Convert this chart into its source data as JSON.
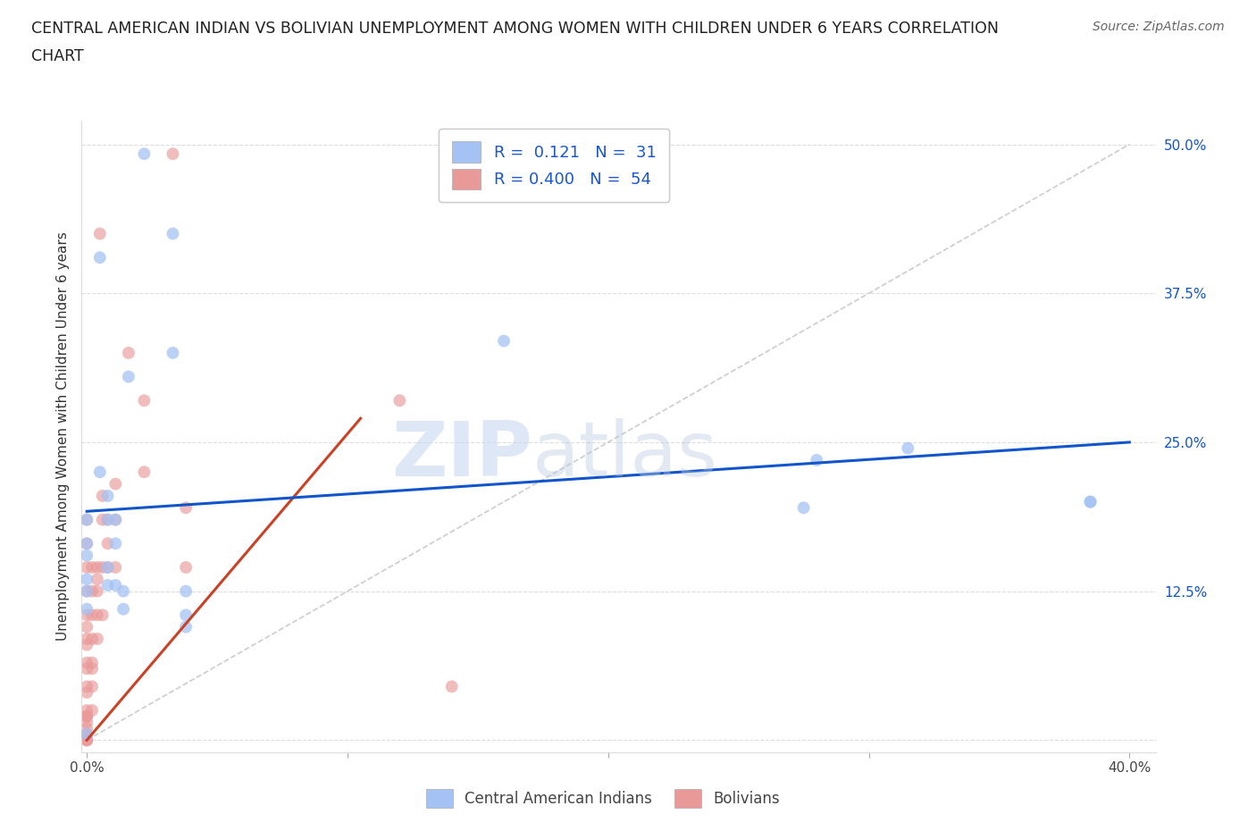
{
  "title_line1": "CENTRAL AMERICAN INDIAN VS BOLIVIAN UNEMPLOYMENT AMONG WOMEN WITH CHILDREN UNDER 6 YEARS CORRELATION",
  "title_line2": "CHART",
  "source": "Source: ZipAtlas.com",
  "ylabel": "Unemployment Among Women with Children Under 6 years",
  "xlim": [
    -0.002,
    0.41
  ],
  "ylim": [
    -0.01,
    0.52
  ],
  "xticks": [
    0.0,
    0.1,
    0.2,
    0.3,
    0.4
  ],
  "xticklabels": [
    "0.0%",
    "",
    "",
    "",
    "40.0%"
  ],
  "yticks": [
    0.0,
    0.125,
    0.25,
    0.375,
    0.5
  ],
  "yticklabels": [
    "",
    "12.5%",
    "25.0%",
    "37.5%",
    "50.0%"
  ],
  "blue_color": "#a4c2f4",
  "pink_color": "#ea9999",
  "blue_line_color": "#1155cc",
  "pink_line_color": "#cc4125",
  "diag_line_color": "#cccccc",
  "legend_R1": " 0.121",
  "legend_N1": "31",
  "legend_R2": "0.400",
  "legend_N2": "54",
  "watermark_zip": "ZIP",
  "watermark_atlas": "atlas",
  "blue_scatter_x": [
    0.022,
    0.033,
    0.005,
    0.033,
    0.016,
    0.005,
    0.008,
    0.008,
    0.011,
    0.011,
    0.008,
    0.008,
    0.011,
    0.014,
    0.014,
    0.038,
    0.038,
    0.038,
    0.16,
    0.28,
    0.275,
    0.315,
    0.385,
    0.385,
    0.0,
    0.0,
    0.0,
    0.0,
    0.0,
    0.0,
    0.0
  ],
  "blue_scatter_y": [
    0.492,
    0.425,
    0.405,
    0.325,
    0.305,
    0.225,
    0.205,
    0.185,
    0.185,
    0.165,
    0.145,
    0.13,
    0.13,
    0.125,
    0.11,
    0.125,
    0.105,
    0.095,
    0.335,
    0.235,
    0.195,
    0.245,
    0.2,
    0.2,
    0.185,
    0.165,
    0.155,
    0.135,
    0.125,
    0.11,
    0.005
  ],
  "pink_scatter_x": [
    0.033,
    0.005,
    0.016,
    0.022,
    0.022,
    0.011,
    0.011,
    0.011,
    0.008,
    0.008,
    0.008,
    0.006,
    0.006,
    0.006,
    0.006,
    0.004,
    0.004,
    0.004,
    0.004,
    0.004,
    0.002,
    0.002,
    0.002,
    0.002,
    0.002,
    0.002,
    0.002,
    0.002,
    0.0,
    0.0,
    0.0,
    0.0,
    0.0,
    0.0,
    0.0,
    0.0,
    0.0,
    0.0,
    0.0,
    0.0,
    0.0,
    0.0,
    0.0,
    0.0,
    0.0,
    0.0,
    0.0,
    0.0,
    0.0,
    0.0,
    0.038,
    0.038,
    0.12,
    0.14
  ],
  "pink_scatter_y": [
    0.492,
    0.425,
    0.325,
    0.285,
    0.225,
    0.215,
    0.185,
    0.145,
    0.185,
    0.165,
    0.145,
    0.205,
    0.185,
    0.145,
    0.105,
    0.145,
    0.135,
    0.125,
    0.105,
    0.085,
    0.145,
    0.125,
    0.105,
    0.085,
    0.065,
    0.06,
    0.045,
    0.025,
    0.185,
    0.165,
    0.145,
    0.125,
    0.105,
    0.095,
    0.085,
    0.08,
    0.065,
    0.06,
    0.045,
    0.04,
    0.025,
    0.02,
    0.02,
    0.02,
    0.015,
    0.01,
    0.005,
    0.0,
    0.0,
    0.0,
    0.195,
    0.145,
    0.285,
    0.045
  ],
  "blue_line_x": [
    0.0,
    0.4
  ],
  "blue_line_y": [
    0.192,
    0.25
  ],
  "pink_line_x": [
    0.0,
    0.105
  ],
  "pink_line_y": [
    0.0,
    0.27
  ],
  "diag_line_x": [
    0.0,
    0.4
  ],
  "diag_line_y": [
    0.0,
    0.5
  ],
  "background_color": "#ffffff",
  "grid_color": "#dddddd",
  "scatter_size": 100
}
